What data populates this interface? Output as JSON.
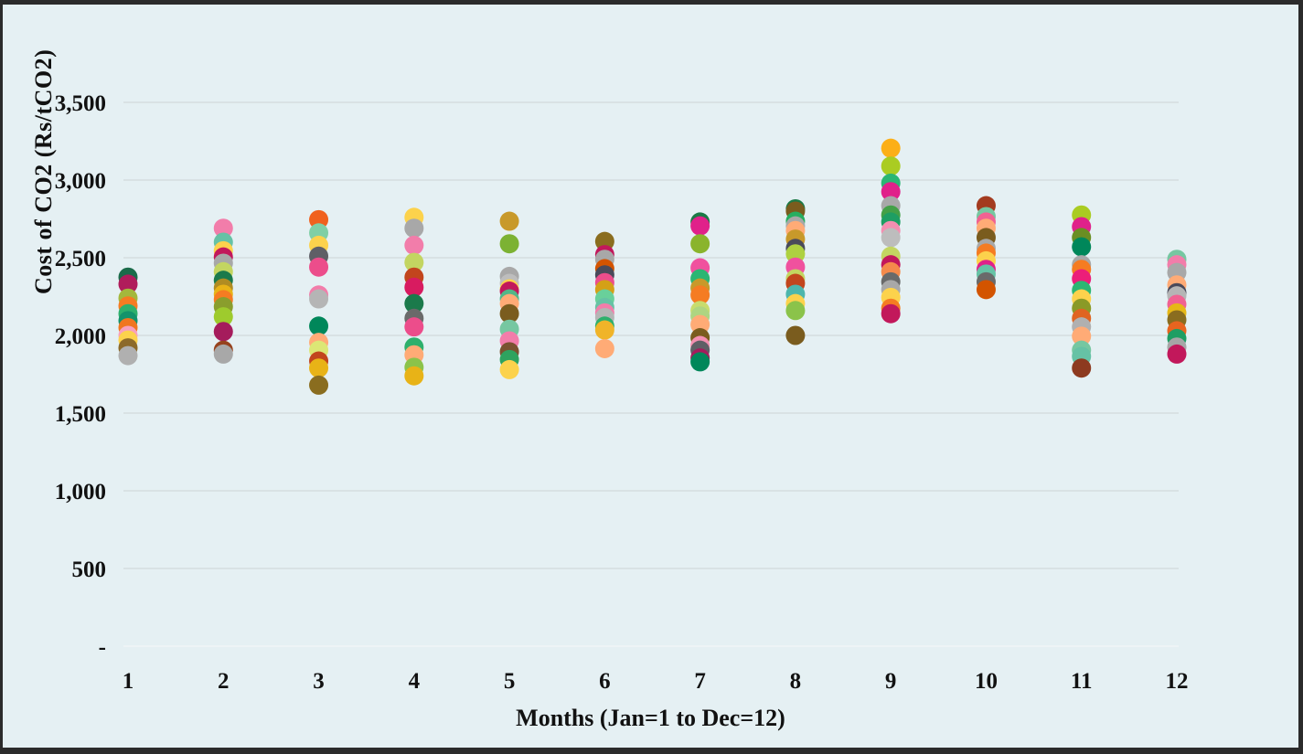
{
  "frame": {
    "background": "#e5f0f3",
    "border_color": "#2b2b2b",
    "gridline_color": "#d9e2e4",
    "zero_line_color": "#eef4f6"
  },
  "chart_data": {
    "type": "scatter",
    "title": "",
    "xlabel": "Months (Jan=1 to Dec=12)",
    "ylabel": "Cost of CO2 (Rs/tCO2)",
    "ylim": [
      0,
      3500
    ],
    "grid": "horizontal",
    "legend": "none",
    "x_ticks": [
      "1",
      "2",
      "3",
      "4",
      "5",
      "6",
      "7",
      "8",
      "9",
      "10",
      "11",
      "12"
    ],
    "y_ticks": [
      {
        "value": 3500,
        "label": "3,500"
      },
      {
        "value": 3000,
        "label": "3,000"
      },
      {
        "value": 2500,
        "label": "2,500"
      },
      {
        "value": 2000,
        "label": "2,000"
      },
      {
        "value": 1500,
        "label": "1,500"
      },
      {
        "value": 1000,
        "label": "1,000"
      },
      {
        "value": 500,
        "label": "500"
      },
      {
        "value": 0,
        "label": "-"
      }
    ],
    "points": [
      {
        "month": 1,
        "value": 2375,
        "color": "#1b6b4a"
      },
      {
        "month": 1,
        "value": 2330,
        "color": "#b01c5b"
      },
      {
        "month": 1,
        "value": 2240,
        "color": "#a4b83c"
      },
      {
        "month": 1,
        "value": 2190,
        "color": "#f57c22"
      },
      {
        "month": 1,
        "value": 2140,
        "color": "#2eb06c"
      },
      {
        "month": 1,
        "value": 2095,
        "color": "#14936b"
      },
      {
        "month": 1,
        "value": 2050,
        "color": "#f0761f"
      },
      {
        "month": 1,
        "value": 2000,
        "color": "#f8a0bc"
      },
      {
        "month": 1,
        "value": 1970,
        "color": "#fcd24c"
      },
      {
        "month": 1,
        "value": 1920,
        "color": "#8c6a2a"
      },
      {
        "month": 1,
        "value": 1870,
        "color": "#b0b0b0"
      },
      {
        "month": 2,
        "value": 2690,
        "color": "#f27daa"
      },
      {
        "month": 2,
        "value": 2600,
        "color": "#66c2a5"
      },
      {
        "month": 2,
        "value": 2545,
        "color": "#fcd24c"
      },
      {
        "month": 2,
        "value": 2505,
        "color": "#c2185b"
      },
      {
        "month": 2,
        "value": 2465,
        "color": "#a8a8a8"
      },
      {
        "month": 2,
        "value": 2410,
        "color": "#c3d561"
      },
      {
        "month": 2,
        "value": 2355,
        "color": "#1b7a4b"
      },
      {
        "month": 2,
        "value": 2305,
        "color": "#b08c22"
      },
      {
        "month": 2,
        "value": 2265,
        "color": "#e8b317"
      },
      {
        "month": 2,
        "value": 2230,
        "color": "#f57c22"
      },
      {
        "month": 2,
        "value": 2185,
        "color": "#8a9e2d"
      },
      {
        "month": 2,
        "value": 2120,
        "color": "#9ecb2d"
      },
      {
        "month": 2,
        "value": 2025,
        "color": "#a51c5c"
      },
      {
        "month": 2,
        "value": 1905,
        "color": "#96421d"
      },
      {
        "month": 2,
        "value": 1880,
        "color": "#a8a8a8"
      },
      {
        "month": 3,
        "value": 2745,
        "color": "#f0611e"
      },
      {
        "month": 3,
        "value": 2660,
        "color": "#7fcfa5"
      },
      {
        "month": 3,
        "value": 2580,
        "color": "#fcd24c"
      },
      {
        "month": 3,
        "value": 2510,
        "color": "#5f5f66"
      },
      {
        "month": 3,
        "value": 2440,
        "color": "#ec4d8b"
      },
      {
        "month": 3,
        "value": 2260,
        "color": "#f27daa"
      },
      {
        "month": 3,
        "value": 2235,
        "color": "#b5b5b5"
      },
      {
        "month": 3,
        "value": 2060,
        "color": "#00875a"
      },
      {
        "month": 3,
        "value": 1955,
        "color": "#ffab76"
      },
      {
        "month": 3,
        "value": 1905,
        "color": "#dce775"
      },
      {
        "month": 3,
        "value": 1835,
        "color": "#c2451d"
      },
      {
        "month": 3,
        "value": 1790,
        "color": "#e8b317"
      },
      {
        "month": 3,
        "value": 1680,
        "color": "#8a6d1f"
      },
      {
        "month": 4,
        "value": 2760,
        "color": "#fcd24c"
      },
      {
        "month": 4,
        "value": 2690,
        "color": "#a8a8a8"
      },
      {
        "month": 4,
        "value": 2580,
        "color": "#f27daa"
      },
      {
        "month": 4,
        "value": 2470,
        "color": "#c3d561"
      },
      {
        "month": 4,
        "value": 2375,
        "color": "#c2451d"
      },
      {
        "month": 4,
        "value": 2310,
        "color": "#d81b60"
      },
      {
        "month": 4,
        "value": 2205,
        "color": "#1b7a4b"
      },
      {
        "month": 4,
        "value": 2110,
        "color": "#6a6a6a"
      },
      {
        "month": 4,
        "value": 2055,
        "color": "#ec4d8b"
      },
      {
        "month": 4,
        "value": 1925,
        "color": "#2eb06c"
      },
      {
        "month": 4,
        "value": 1875,
        "color": "#ffab76"
      },
      {
        "month": 4,
        "value": 1795,
        "color": "#8bc34a"
      },
      {
        "month": 4,
        "value": 1740,
        "color": "#e8b317"
      },
      {
        "month": 5,
        "value": 2735,
        "color": "#c8992a"
      },
      {
        "month": 5,
        "value": 2590,
        "color": "#7cb233"
      },
      {
        "month": 5,
        "value": 2380,
        "color": "#a8a8a8"
      },
      {
        "month": 5,
        "value": 2335,
        "color": "#bdbdbd"
      },
      {
        "month": 5,
        "value": 2300,
        "color": "#fcd24c"
      },
      {
        "month": 5,
        "value": 2285,
        "color": "#c2185b"
      },
      {
        "month": 5,
        "value": 2235,
        "color": "#52b788"
      },
      {
        "month": 5,
        "value": 2205,
        "color": "#ffab76"
      },
      {
        "month": 5,
        "value": 2140,
        "color": "#7a5c1e"
      },
      {
        "month": 5,
        "value": 2040,
        "color": "#76c7a1"
      },
      {
        "month": 5,
        "value": 1965,
        "color": "#f27daa"
      },
      {
        "month": 5,
        "value": 1895,
        "color": "#7a5230"
      },
      {
        "month": 5,
        "value": 1845,
        "color": "#2ea35f"
      },
      {
        "month": 5,
        "value": 1780,
        "color": "#fcd24c"
      },
      {
        "month": 6,
        "value": 2605,
        "color": "#8a6d1f"
      },
      {
        "month": 6,
        "value": 2520,
        "color": "#c2185b"
      },
      {
        "month": 6,
        "value": 2490,
        "color": "#a8a8a8"
      },
      {
        "month": 6,
        "value": 2430,
        "color": "#d35400"
      },
      {
        "month": 6,
        "value": 2390,
        "color": "#4a4a5a"
      },
      {
        "month": 6,
        "value": 2340,
        "color": "#ec4d8b"
      },
      {
        "month": 6,
        "value": 2295,
        "color": "#d4a017"
      },
      {
        "month": 6,
        "value": 2235,
        "color": "#69d09a"
      },
      {
        "month": 6,
        "value": 2180,
        "color": "#66c2a5"
      },
      {
        "month": 6,
        "value": 2145,
        "color": "#f27daa"
      },
      {
        "month": 6,
        "value": 2115,
        "color": "#b5b5b5"
      },
      {
        "month": 6,
        "value": 2060,
        "color": "#2eb06c"
      },
      {
        "month": 6,
        "value": 2035,
        "color": "#f0b429"
      },
      {
        "month": 6,
        "value": 1915,
        "color": "#ffab76"
      },
      {
        "month": 7,
        "value": 2730,
        "color": "#1b7a46"
      },
      {
        "month": 7,
        "value": 2705,
        "color": "#e0218a"
      },
      {
        "month": 7,
        "value": 2590,
        "color": "#8ab42c"
      },
      {
        "month": 7,
        "value": 2435,
        "color": "#f0519e"
      },
      {
        "month": 7,
        "value": 2365,
        "color": "#2bb673"
      },
      {
        "month": 7,
        "value": 2305,
        "color": "#c8992a"
      },
      {
        "month": 7,
        "value": 2260,
        "color": "#f57c22"
      },
      {
        "month": 7,
        "value": 2160,
        "color": "#c8dc6e"
      },
      {
        "month": 7,
        "value": 2125,
        "color": "#aed581"
      },
      {
        "month": 7,
        "value": 2070,
        "color": "#ffab76"
      },
      {
        "month": 7,
        "value": 1985,
        "color": "#7a5c1e"
      },
      {
        "month": 7,
        "value": 1935,
        "color": "#f48fb1"
      },
      {
        "month": 7,
        "value": 1905,
        "color": "#5f5f66"
      },
      {
        "month": 7,
        "value": 1855,
        "color": "#a51c5c"
      },
      {
        "month": 7,
        "value": 1830,
        "color": "#00875a"
      },
      {
        "month": 8,
        "value": 2815,
        "color": "#1b7a46"
      },
      {
        "month": 8,
        "value": 2800,
        "color": "#7a5c1e"
      },
      {
        "month": 8,
        "value": 2735,
        "color": "#27ae60"
      },
      {
        "month": 8,
        "value": 2705,
        "color": "#a8a8a8"
      },
      {
        "month": 8,
        "value": 2675,
        "color": "#ffab76"
      },
      {
        "month": 8,
        "value": 2620,
        "color": "#c8992a"
      },
      {
        "month": 8,
        "value": 2560,
        "color": "#4a4a5a"
      },
      {
        "month": 8,
        "value": 2525,
        "color": "#aed140"
      },
      {
        "month": 8,
        "value": 2440,
        "color": "#f0519e"
      },
      {
        "month": 8,
        "value": 2365,
        "color": "#c3d561"
      },
      {
        "month": 8,
        "value": 2335,
        "color": "#c2451d"
      },
      {
        "month": 8,
        "value": 2265,
        "color": "#4db6ac"
      },
      {
        "month": 8,
        "value": 2205,
        "color": "#fcd24c"
      },
      {
        "month": 8,
        "value": 2160,
        "color": "#8bc34a"
      },
      {
        "month": 8,
        "value": 2000,
        "color": "#7a5c1e"
      },
      {
        "month": 9,
        "value": 3205,
        "color": "#fcaf17"
      },
      {
        "month": 9,
        "value": 3090,
        "color": "#aacc22"
      },
      {
        "month": 9,
        "value": 2980,
        "color": "#2bb673"
      },
      {
        "month": 9,
        "value": 2925,
        "color": "#e0218a"
      },
      {
        "month": 9,
        "value": 2835,
        "color": "#a8a8a8"
      },
      {
        "month": 9,
        "value": 2775,
        "color": "#43a047"
      },
      {
        "month": 9,
        "value": 2730,
        "color": "#1e9e63"
      },
      {
        "month": 9,
        "value": 2675,
        "color": "#f48fb1"
      },
      {
        "month": 9,
        "value": 2630,
        "color": "#bdbdbd"
      },
      {
        "month": 9,
        "value": 2510,
        "color": "#c3d561"
      },
      {
        "month": 9,
        "value": 2455,
        "color": "#c2185b"
      },
      {
        "month": 9,
        "value": 2410,
        "color": "#f58a4b"
      },
      {
        "month": 9,
        "value": 2345,
        "color": "#6a6a6a"
      },
      {
        "month": 9,
        "value": 2295,
        "color": "#a8a8a8"
      },
      {
        "month": 9,
        "value": 2245,
        "color": "#fcd24c"
      },
      {
        "month": 9,
        "value": 2175,
        "color": "#f57c22"
      },
      {
        "month": 9,
        "value": 2140,
        "color": "#c2185b"
      },
      {
        "month": 10,
        "value": 2835,
        "color": "#a33b1f"
      },
      {
        "month": 10,
        "value": 2765,
        "color": "#76c7a1"
      },
      {
        "month": 10,
        "value": 2730,
        "color": "#f06292"
      },
      {
        "month": 10,
        "value": 2690,
        "color": "#ffab76"
      },
      {
        "month": 10,
        "value": 2630,
        "color": "#7a5c1e"
      },
      {
        "month": 10,
        "value": 2560,
        "color": "#a8a8a8"
      },
      {
        "month": 10,
        "value": 2530,
        "color": "#f57c22"
      },
      {
        "month": 10,
        "value": 2480,
        "color": "#fcd24c"
      },
      {
        "month": 10,
        "value": 2425,
        "color": "#e0218a"
      },
      {
        "month": 10,
        "value": 2395,
        "color": "#66c2a5"
      },
      {
        "month": 10,
        "value": 2345,
        "color": "#6a6a6a"
      },
      {
        "month": 10,
        "value": 2295,
        "color": "#d35400"
      },
      {
        "month": 11,
        "value": 2775,
        "color": "#aacc22"
      },
      {
        "month": 11,
        "value": 2700,
        "color": "#e0218a"
      },
      {
        "month": 11,
        "value": 2630,
        "color": "#6b8e23"
      },
      {
        "month": 11,
        "value": 2570,
        "color": "#00875a"
      },
      {
        "month": 11,
        "value": 2455,
        "color": "#a8a8a8"
      },
      {
        "month": 11,
        "value": 2425,
        "color": "#f57c22"
      },
      {
        "month": 11,
        "value": 2365,
        "color": "#ec1e79"
      },
      {
        "month": 11,
        "value": 2290,
        "color": "#2bb673"
      },
      {
        "month": 11,
        "value": 2235,
        "color": "#fcd24c"
      },
      {
        "month": 11,
        "value": 2175,
        "color": "#8a9a27"
      },
      {
        "month": 11,
        "value": 2110,
        "color": "#e06420"
      },
      {
        "month": 11,
        "value": 2055,
        "color": "#b0b0b0"
      },
      {
        "month": 11,
        "value": 1995,
        "color": "#ffab76"
      },
      {
        "month": 11,
        "value": 1905,
        "color": "#76c7a1"
      },
      {
        "month": 11,
        "value": 1865,
        "color": "#66c2a5"
      },
      {
        "month": 11,
        "value": 1790,
        "color": "#8d3a1f"
      },
      {
        "month": 12,
        "value": 2490,
        "color": "#76c7a1"
      },
      {
        "month": 12,
        "value": 2455,
        "color": "#f27daa"
      },
      {
        "month": 12,
        "value": 2405,
        "color": "#a8a8a8"
      },
      {
        "month": 12,
        "value": 2325,
        "color": "#ffab76"
      },
      {
        "month": 12,
        "value": 2275,
        "color": "#4a4a5a"
      },
      {
        "month": 12,
        "value": 2255,
        "color": "#b5b5b5"
      },
      {
        "month": 12,
        "value": 2200,
        "color": "#f06292"
      },
      {
        "month": 12,
        "value": 2145,
        "color": "#e6b817"
      },
      {
        "month": 12,
        "value": 2100,
        "color": "#8a6d1f"
      },
      {
        "month": 12,
        "value": 2030,
        "color": "#e8641f"
      },
      {
        "month": 12,
        "value": 1980,
        "color": "#1e9e63"
      },
      {
        "month": 12,
        "value": 1925,
        "color": "#a6a6a6"
      },
      {
        "month": 12,
        "value": 1880,
        "color": "#c2185b"
      }
    ]
  }
}
